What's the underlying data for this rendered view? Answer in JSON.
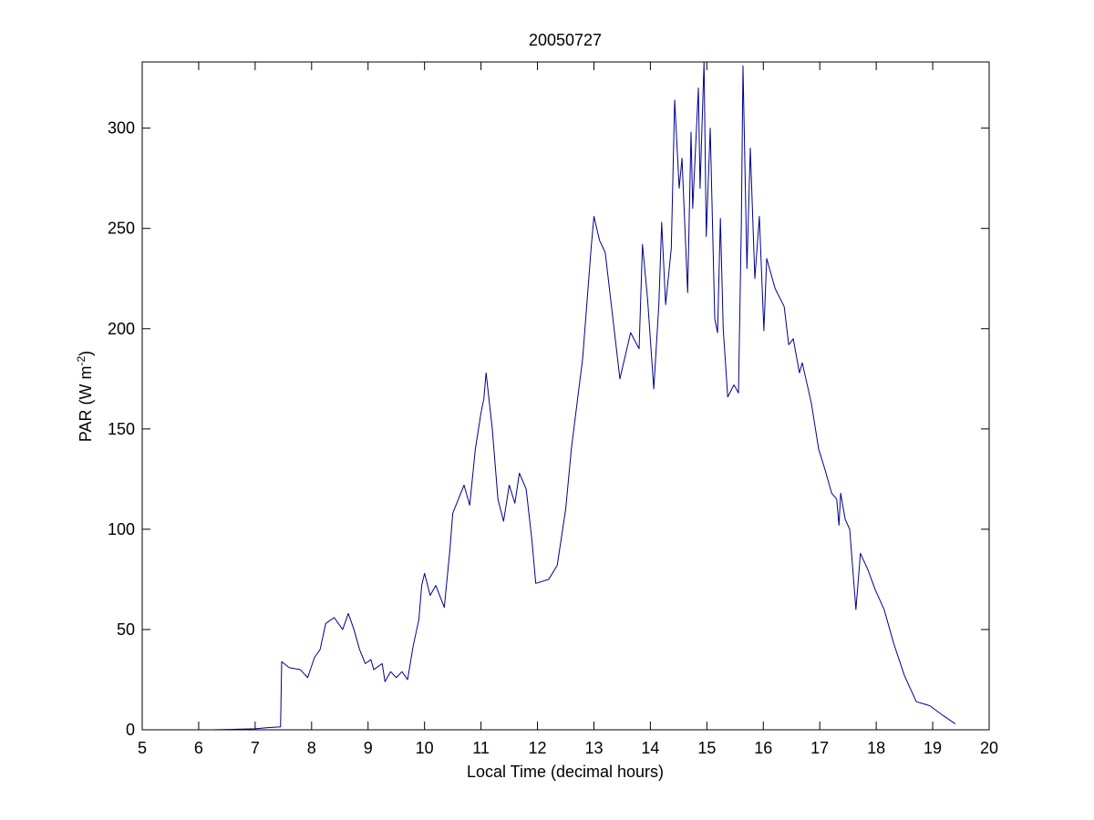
{
  "chart_data": {
    "type": "line",
    "title": "20050727",
    "xlabel": "Local Time (decimal hours)",
    "ylabel": {
      "text": "PAR (W m",
      "superscript": "-2",
      "suffix": ")"
    },
    "xlim": [
      5,
      20
    ],
    "xticks": [
      5,
      6,
      7,
      8,
      9,
      10,
      11,
      12,
      13,
      14,
      15,
      16,
      17,
      18,
      19,
      20
    ],
    "ylim": [
      0,
      333
    ],
    "yticks": [
      0,
      50,
      100,
      150,
      200,
      250,
      300
    ],
    "grid": false,
    "series": [
      {
        "color": "#00008b",
        "x": [
          6.2,
          7.0,
          7.2,
          7.45,
          7.47,
          7.6,
          7.8,
          7.93,
          8.05,
          8.15,
          8.25,
          8.4,
          8.55,
          8.65,
          8.75,
          8.85,
          8.95,
          9.05,
          9.1,
          9.25,
          9.3,
          9.4,
          9.5,
          9.6,
          9.7,
          9.8,
          9.9,
          9.95,
          10.0,
          10.1,
          10.2,
          10.35,
          10.45,
          10.5,
          10.6,
          10.7,
          10.8,
          10.9,
          11.0,
          11.05,
          11.09,
          11.2,
          11.3,
          11.4,
          11.5,
          11.6,
          11.68,
          11.8,
          11.9,
          11.97,
          12.2,
          12.35,
          12.5,
          12.6,
          12.8,
          12.95,
          13.0,
          13.1,
          13.2,
          13.46,
          13.65,
          13.8,
          13.86,
          13.95,
          14.06,
          14.15,
          14.2,
          14.27,
          14.37,
          14.43,
          14.51,
          14.56,
          14.66,
          14.72,
          14.75,
          14.85,
          14.88,
          14.95,
          14.99,
          15.06,
          15.14,
          15.19,
          15.24,
          15.29,
          15.37,
          15.48,
          15.56,
          15.61,
          15.64,
          15.71,
          15.77,
          15.85,
          15.93,
          16.01,
          16.06,
          16.21,
          16.37,
          16.45,
          16.53,
          16.64,
          16.69,
          16.85,
          16.98,
          17.09,
          17.21,
          17.3,
          17.34,
          17.37,
          17.45,
          17.53,
          17.64,
          17.72,
          17.85,
          17.98,
          18.14,
          18.31,
          18.5,
          18.71,
          18.95,
          19.19,
          19.4
        ],
        "values": [
          0,
          0.5,
          1,
          1.5,
          34,
          31,
          30,
          26,
          36,
          40,
          53,
          56,
          50,
          58,
          50,
          40,
          33,
          35,
          30,
          33,
          24,
          29,
          26,
          29,
          25,
          42,
          55,
          72,
          78,
          67,
          72,
          61,
          90,
          108,
          115,
          122,
          112,
          140,
          158,
          165,
          178,
          150,
          115,
          104,
          122,
          113,
          128,
          120,
          95,
          73,
          75,
          82,
          110,
          140,
          185,
          240,
          256,
          244,
          238,
          175,
          198,
          190,
          242,
          215,
          170,
          212,
          253,
          212,
          240,
          314,
          270,
          285,
          218,
          298,
          260,
          320,
          270,
          333,
          246,
          300,
          205,
          198,
          255,
          200,
          166,
          172,
          168,
          250,
          331,
          230,
          290,
          225,
          256,
          199,
          235,
          220,
          211,
          192,
          195,
          178,
          183,
          163,
          140,
          130,
          118,
          115,
          102,
          118,
          105,
          100,
          60,
          88,
          80,
          70,
          60,
          43,
          27,
          14,
          12,
          7,
          3
        ]
      }
    ]
  }
}
